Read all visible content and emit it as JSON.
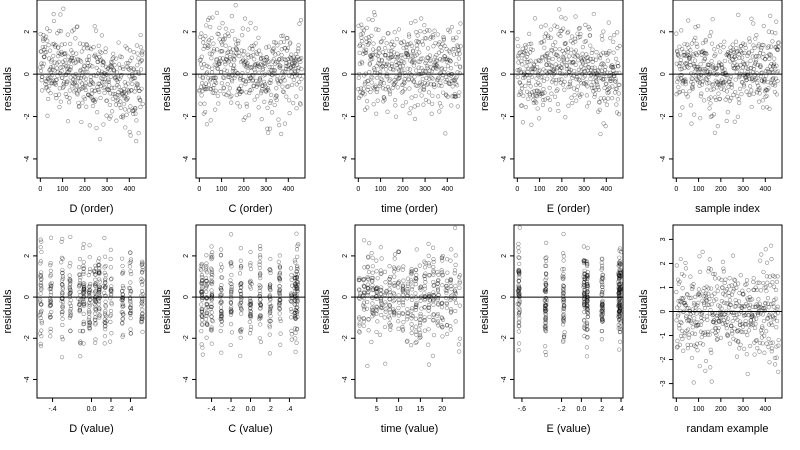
{
  "chart_data": [
    {
      "type": "scatter",
      "xlabel": "D (order)",
      "ylabel": "residuals",
      "pattern": "order",
      "xlim": [
        -15,
        475
      ],
      "ylim": [
        -4.9,
        3.5
      ],
      "xticks": [
        0,
        100,
        200,
        300,
        400
      ],
      "yticks": [
        -4,
        -2,
        0,
        2
      ],
      "n_points": 460,
      "refline_y": 0,
      "seed": 11,
      "x_range": [
        0,
        460
      ],
      "y_center_profile": [
        0.6,
        0.5,
        0.1,
        -0.2,
        -0.3,
        -0.4,
        -0.5
      ],
      "y_spread": 1.0
    },
    {
      "type": "scatter",
      "xlabel": "C (order)",
      "ylabel": "residuals",
      "pattern": "order",
      "xlim": [
        -15,
        475
      ],
      "ylim": [
        -4.9,
        3.5
      ],
      "xticks": [
        0,
        100,
        200,
        300,
        400
      ],
      "yticks": [
        -4,
        -2,
        0,
        2
      ],
      "n_points": 460,
      "refline_y": 0,
      "seed": 23,
      "x_range": [
        0,
        460
      ],
      "y_center_profile": [
        0.3,
        0.4,
        0.2,
        0.0,
        -0.1,
        0.2,
        0.3
      ],
      "y_spread": 1.0
    },
    {
      "type": "scatter",
      "xlabel": "time (order)",
      "ylabel": "residuals",
      "pattern": "order",
      "xlim": [
        -15,
        475
      ],
      "ylim": [
        -4.9,
        3.5
      ],
      "xticks": [
        0,
        100,
        200,
        300,
        400
      ],
      "yticks": [
        -4,
        -2,
        0,
        2
      ],
      "n_points": 460,
      "refline_y": 0,
      "seed": 37,
      "x_range": [
        0,
        460
      ],
      "y_center_profile": [
        0.4,
        0.5,
        0.4,
        0.3,
        0.2,
        0.3,
        0.4
      ],
      "y_spread": 1.0
    },
    {
      "type": "scatter",
      "xlabel": "E (order)",
      "ylabel": "residuals",
      "pattern": "order",
      "xlim": [
        -15,
        475
      ],
      "ylim": [
        -4.9,
        3.5
      ],
      "xticks": [
        0,
        100,
        200,
        300,
        400
      ],
      "yticks": [
        -4,
        -2,
        0,
        2
      ],
      "n_points": 460,
      "refline_y": 0,
      "seed": 41,
      "x_range": [
        0,
        460
      ],
      "y_center_profile": [
        0.0,
        0.2,
        0.4,
        0.5,
        0.3,
        0.0,
        -0.2
      ],
      "y_spread": 1.0
    },
    {
      "type": "scatter",
      "xlabel": "sample index",
      "ylabel": "residuals",
      "pattern": "order",
      "xlim": [
        -15,
        475
      ],
      "ylim": [
        -4.9,
        3.5
      ],
      "xticks": [
        0,
        100,
        200,
        300,
        400
      ],
      "yticks": [
        -4,
        -2,
        0,
        2
      ],
      "n_points": 460,
      "refline_y": 0,
      "seed": 53,
      "x_range": [
        0,
        460
      ],
      "y_center_profile": [
        0.5,
        0.3,
        0.1,
        0.0,
        0.1,
        0.2,
        0.4
      ],
      "y_spread": 1.0
    },
    {
      "type": "scatter",
      "xlabel": "D (value)",
      "ylabel": "residuals",
      "pattern": "value",
      "xlim": [
        -0.56,
        0.56
      ],
      "ylim": [
        -4.9,
        3.5
      ],
      "xticks": [
        -0.4,
        0.0,
        0.2,
        0.4
      ],
      "yticks": [
        -4,
        -2,
        0,
        2
      ],
      "n_points": 460,
      "refline_y": 0,
      "seed": 61,
      "x_values": [
        -0.52,
        -0.42,
        -0.3,
        -0.22,
        -0.12,
        -0.08,
        -0.02,
        0.04,
        0.08,
        0.14,
        0.2,
        0.32,
        0.4,
        0.52
      ],
      "y_center": 0.0,
      "y_spread": 1.1
    },
    {
      "type": "scatter",
      "xlabel": "C (value)",
      "ylabel": "residuals",
      "pattern": "value",
      "xlim": [
        -0.56,
        0.56
      ],
      "ylim": [
        -4.9,
        3.5
      ],
      "xticks": [
        -0.4,
        -0.2,
        0.0,
        0.2,
        0.4
      ],
      "yticks": [
        -4,
        -2,
        0,
        2
      ],
      "n_points": 460,
      "refline_y": 0,
      "seed": 71,
      "x_values": [
        -0.5,
        -0.45,
        -0.4,
        -0.3,
        -0.2,
        -0.1,
        0.0,
        0.1,
        0.2,
        0.3,
        0.42,
        0.46,
        0.48
      ],
      "y_center": 0.0,
      "y_spread": 1.1
    },
    {
      "type": "scatter",
      "xlabel": "time (value)",
      "ylabel": "residuals",
      "pattern": "value",
      "xlim": [
        0,
        25
      ],
      "ylim": [
        -4.9,
        3.5
      ],
      "xticks": [
        5,
        10,
        15,
        20
      ],
      "yticks": [
        -4,
        -2,
        0,
        2
      ],
      "n_points": 460,
      "refline_y": 0,
      "seed": 83,
      "x_values": [
        1,
        2,
        3,
        4,
        5,
        6,
        7,
        8,
        9,
        10,
        11,
        12,
        13,
        14,
        15,
        16,
        17,
        18,
        19,
        20,
        21,
        22,
        23,
        24
      ],
      "y_center": 0.0,
      "y_spread": 1.1
    },
    {
      "type": "scatter",
      "xlabel": "E (value)",
      "ylabel": "residuals",
      "pattern": "value",
      "xlim": [
        -0.68,
        0.42
      ],
      "ylim": [
        -4.9,
        3.5
      ],
      "xticks": [
        -0.6,
        -0.2,
        0.0,
        0.2,
        0.4
      ],
      "yticks": [
        -4,
        -2,
        0,
        2
      ],
      "n_points": 460,
      "refline_y": 0,
      "seed": 97,
      "x_values": [
        -0.63,
        -0.36,
        -0.18,
        0.03,
        0.06,
        0.21,
        0.38,
        0.39
      ],
      "y_center": 0.0,
      "y_spread": 1.1
    },
    {
      "type": "scatter",
      "xlabel": "randam example",
      "ylabel": "residuals",
      "pattern": "random",
      "xlim": [
        -15,
        475
      ],
      "ylim": [
        -3.6,
        3.6
      ],
      "xticks": [
        0,
        100,
        200,
        300,
        400
      ],
      "yticks": [
        -3,
        -2,
        -1,
        0,
        1,
        2,
        3
      ],
      "n_points": 460,
      "refline_y": 0,
      "seed": 109,
      "x_range": [
        0,
        460
      ],
      "y_center_profile": [
        0,
        0,
        0,
        0,
        0,
        0,
        0
      ],
      "y_spread": 1.0
    }
  ]
}
